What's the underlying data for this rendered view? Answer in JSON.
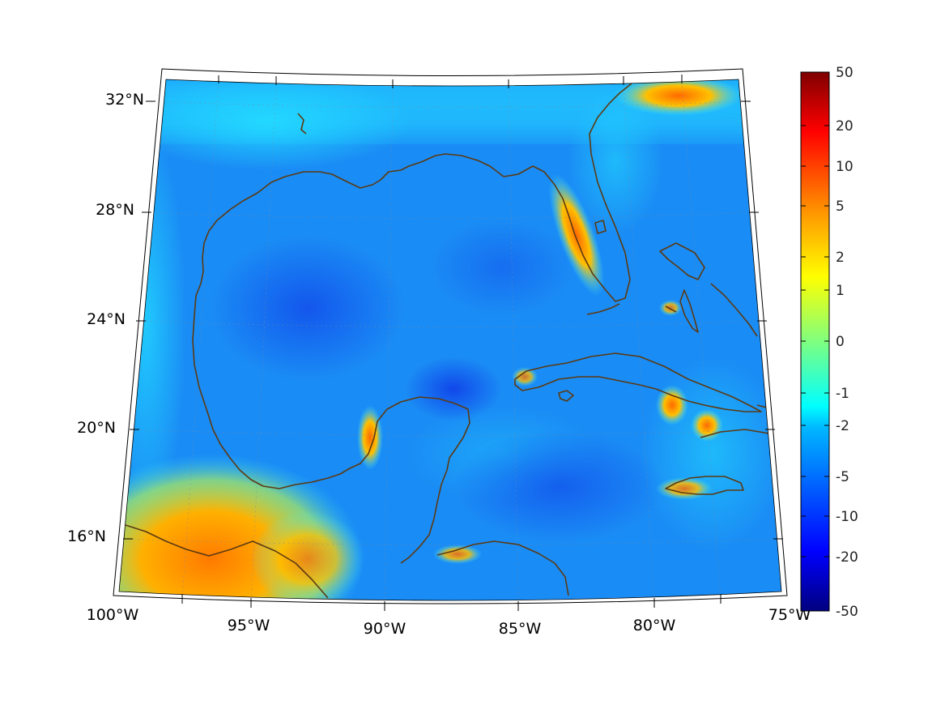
{
  "map": {
    "lat_labels": [
      "32°N",
      "28°N",
      "24°N",
      "20°N",
      "16°N"
    ],
    "lon_labels": [
      "100°W",
      "95°W",
      "90°W",
      "85°W",
      "80°W",
      "75°W"
    ],
    "coastline_color": "#5c3a12"
  },
  "colorbar": {
    "colormap": "jet",
    "tick_labels": [
      "50",
      "20",
      "10",
      "5",
      "2",
      "1",
      "0",
      "-1",
      "-2",
      "-5",
      "-10",
      "-20",
      "-50"
    ]
  }
}
